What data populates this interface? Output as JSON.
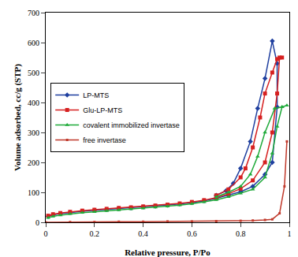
{
  "chart_data": {
    "type": "line",
    "x_label": "Relative pressure, P/Po",
    "y_label": "Volume adsorbed, cc/g (STP)",
    "xlim": [
      0,
      1
    ],
    "xticks": [
      0,
      0.2,
      0.4,
      0.6,
      0.8,
      1
    ],
    "ylim": [
      0,
      700
    ],
    "yticks": [
      0,
      100,
      200,
      300,
      400,
      500,
      600,
      700
    ],
    "grid": false,
    "legend": "left",
    "series": [
      {
        "name": "LP-MTS",
        "color": "#1f3f9f",
        "marker": "diamond",
        "x": [
          0.01,
          0.03,
          0.06,
          0.1,
          0.15,
          0.2,
          0.25,
          0.3,
          0.35,
          0.4,
          0.45,
          0.5,
          0.55,
          0.6,
          0.65,
          0.7,
          0.75,
          0.8,
          0.85,
          0.9,
          0.93,
          0.95,
          0.95,
          0.93,
          0.9,
          0.87,
          0.84,
          0.8,
          0.77,
          0.74,
          0.7
        ],
        "values": [
          20,
          25,
          29,
          33,
          37,
          40,
          43,
          46,
          48,
          51,
          54,
          57,
          61,
          66,
          72,
          80,
          90,
          102,
          120,
          160,
          200,
          385,
          530,
          605,
          480,
          380,
          270,
          180,
          130,
          105,
          90
        ]
      },
      {
        "name": "Glu-LP-MTS",
        "color": "#d62020",
        "marker": "square",
        "x": [
          0.01,
          0.03,
          0.06,
          0.1,
          0.15,
          0.2,
          0.25,
          0.3,
          0.35,
          0.4,
          0.45,
          0.5,
          0.55,
          0.6,
          0.65,
          0.7,
          0.75,
          0.8,
          0.85,
          0.9,
          0.93,
          0.95,
          0.96,
          0.97,
          0.95,
          0.93,
          0.9,
          0.88,
          0.85,
          0.82,
          0.8,
          0.75,
          0.7
        ],
        "values": [
          22,
          27,
          31,
          35,
          39,
          42,
          45,
          48,
          50,
          53,
          56,
          59,
          63,
          68,
          74,
          82,
          95,
          112,
          140,
          200,
          300,
          430,
          550,
          550,
          545,
          500,
          430,
          350,
          250,
          180,
          150,
          110,
          90
        ]
      },
      {
        "name": "covalent immobilized invertase",
        "color": "#1faa3a",
        "marker": "triangle",
        "x": [
          0.01,
          0.03,
          0.06,
          0.1,
          0.15,
          0.2,
          0.25,
          0.3,
          0.35,
          0.4,
          0.45,
          0.5,
          0.55,
          0.6,
          0.65,
          0.7,
          0.75,
          0.8,
          0.85,
          0.9,
          0.93,
          0.95,
          0.97,
          0.99,
          0.97,
          0.94,
          0.9,
          0.87,
          0.84,
          0.8,
          0.75,
          0.7
        ],
        "values": [
          15,
          20,
          24,
          28,
          32,
          35,
          38,
          41,
          44,
          47,
          50,
          53,
          57,
          62,
          68,
          75,
          85,
          97,
          110,
          150,
          230,
          320,
          385,
          390,
          385,
          380,
          300,
          220,
          160,
          120,
          100,
          85
        ]
      },
      {
        "name": "free invertase",
        "color": "#c0392b",
        "marker": "square",
        "x": [
          0,
          0.1,
          0.2,
          0.3,
          0.4,
          0.5,
          0.6,
          0.7,
          0.8,
          0.85,
          0.9,
          0.93,
          0.96,
          0.98,
          0.99
        ],
        "values": [
          0,
          1,
          1,
          2,
          2,
          3,
          3,
          4,
          5,
          6,
          8,
          10,
          30,
          120,
          270
        ]
      }
    ]
  }
}
